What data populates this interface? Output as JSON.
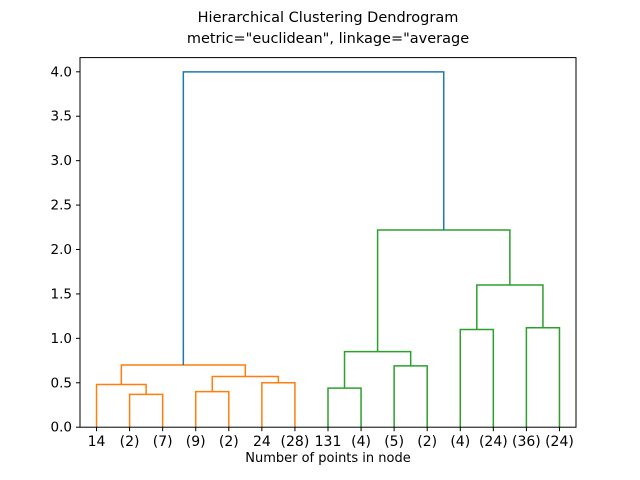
{
  "chart_data": {
    "type": "dendrogram",
    "title": "Hierarchical Clustering Dendrogram",
    "subtitle": "metric=\"euclidean\", linkage=\"average",
    "xlabel": "Number of points in node",
    "ylabel": "",
    "xlim": [
      0,
      150
    ],
    "ylim": [
      0,
      4.16
    ],
    "y_ticks": [
      "0.0",
      "0.5",
      "1.0",
      "1.5",
      "2.0",
      "2.5",
      "3.0",
      "3.5",
      "4.0"
    ],
    "leaf_labels": [
      "14",
      "(2)",
      "(7)",
      "(9)",
      "(2)",
      "24",
      "(28)",
      "131",
      "(4)",
      "(5)",
      "(2)",
      "(4)",
      "(24)",
      "(36)",
      "(24)"
    ],
    "leaf_x": [
      5,
      15,
      25,
      35,
      45,
      55,
      65,
      75,
      85,
      95,
      105,
      115,
      125,
      135,
      145
    ],
    "colors": {
      "orange": "#ff7f0e",
      "green": "#2ca02c",
      "blue": "#1f77b4"
    },
    "links": [
      {
        "color": "orange",
        "x1": 15,
        "h1": 0,
        "x2": 25,
        "h2": 0,
        "h": 0.37
      },
      {
        "color": "orange",
        "x1": 5,
        "h1": 0,
        "x2": 20,
        "h2": 0.37,
        "h": 0.48
      },
      {
        "color": "orange",
        "x1": 35,
        "h1": 0,
        "x2": 45,
        "h2": 0,
        "h": 0.4
      },
      {
        "color": "orange",
        "x1": 55,
        "h1": 0,
        "x2": 65,
        "h2": 0,
        "h": 0.5
      },
      {
        "color": "orange",
        "x1": 40,
        "h1": 0.4,
        "x2": 60,
        "h2": 0.5,
        "h": 0.57
      },
      {
        "color": "orange",
        "x1": 12.5,
        "h1": 0.48,
        "x2": 50,
        "h2": 0.57,
        "h": 0.7
      },
      {
        "color": "green",
        "x1": 75,
        "h1": 0,
        "x2": 85,
        "h2": 0,
        "h": 0.44
      },
      {
        "color": "green",
        "x1": 95,
        "h1": 0,
        "x2": 105,
        "h2": 0,
        "h": 0.69
      },
      {
        "color": "green",
        "x1": 80,
        "h1": 0.44,
        "x2": 100,
        "h2": 0.69,
        "h": 0.85
      },
      {
        "color": "green",
        "x1": 115,
        "h1": 0,
        "x2": 125,
        "h2": 0,
        "h": 1.1
      },
      {
        "color": "green",
        "x1": 135,
        "h1": 0,
        "x2": 145,
        "h2": 0,
        "h": 1.12
      },
      {
        "color": "green",
        "x1": 120,
        "h1": 1.1,
        "x2": 140,
        "h2": 1.12,
        "h": 1.6
      },
      {
        "color": "green",
        "x1": 90,
        "h1": 0.85,
        "x2": 130,
        "h2": 1.6,
        "h": 2.22
      },
      {
        "color": "blue",
        "x1": 31.25,
        "h1": 0.7,
        "x2": 110,
        "h2": 2.22,
        "h": 4.0
      }
    ]
  }
}
